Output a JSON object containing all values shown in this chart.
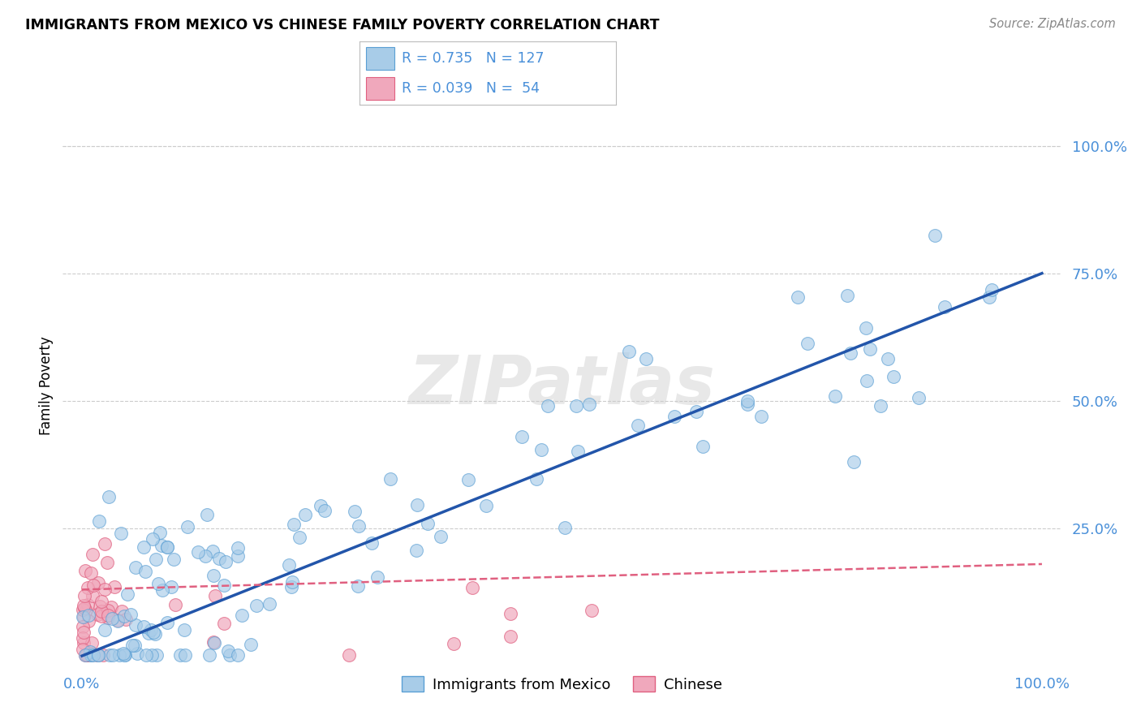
{
  "title": "IMMIGRANTS FROM MEXICO VS CHINESE FAMILY POVERTY CORRELATION CHART",
  "source": "Source: ZipAtlas.com",
  "ylabel": "Family Poverty",
  "watermark_text": "ZIPatlas",
  "blue_color": "#4a90d9",
  "pink_color": "#e0607a",
  "blue_scatter_face": "#a8cce8",
  "blue_scatter_edge": "#5a9fd4",
  "pink_scatter_face": "#f0a8bc",
  "pink_scatter_edge": "#e06080",
  "blue_line_color": "#2255aa",
  "pink_line_color": "#e06080",
  "grid_color": "#cccccc",
  "background_color": "#ffffff",
  "tick_color": "#4a90d9",
  "R_blue": "0.735",
  "N_blue": "127",
  "R_pink": "0.039",
  "N_pink": "54",
  "legend_label_blue": "Immigrants from Mexico",
  "legend_label_pink": "Chinese",
  "blue_line_x0": 0.0,
  "blue_line_y0": 0.0,
  "blue_line_x1": 1.0,
  "blue_line_y1": 0.75,
  "pink_line_x0": 0.0,
  "pink_line_y0": 0.13,
  "pink_line_x1": 1.0,
  "pink_line_y1": 0.18,
  "xlim": [
    0.0,
    1.0
  ],
  "ylim": [
    -0.02,
    1.08
  ]
}
